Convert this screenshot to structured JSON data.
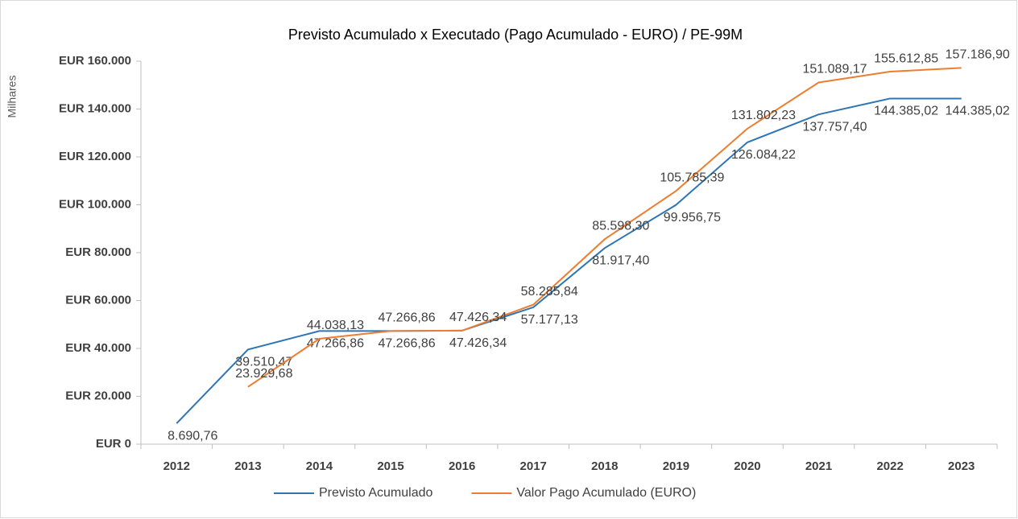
{
  "chart_data": {
    "type": "line",
    "title": "Previsto Acumulado x Executado (Pago Acumulado - EURO) / PE-99M",
    "y_label": "Milhares",
    "categories": [
      "2012",
      "2013",
      "2014",
      "2015",
      "2016",
      "2017",
      "2018",
      "2019",
      "2020",
      "2021",
      "2022",
      "2023"
    ],
    "series": [
      {
        "name": "Previsto Acumulado",
        "color": "#2e75b6",
        "values": [
          8690.76,
          39510.47,
          47266.86,
          47266.86,
          47426.34,
          57177.13,
          81917.4,
          99956.75,
          126084.22,
          137757.4,
          144385.02,
          144385.02
        ],
        "value_labels": [
          "8.690,76",
          "39.510,47",
          "47.266,86",
          "47.266,86",
          "47.426,34",
          "57.177,13",
          "81.917,40",
          "99.956,75",
          "126.084,22",
          "137.757,40",
          "144.385,02",
          "144.385,02"
        ]
      },
      {
        "name": "Valor Pago Acumulado (EURO)",
        "color": "#ed7d31",
        "values": [
          null,
          23929.68,
          44038.13,
          47266.86,
          47426.34,
          58285.84,
          85598.3,
          105785.39,
          131802.23,
          151089.17,
          155612.85,
          157186.9
        ],
        "value_labels": [
          null,
          "23.929,68",
          "44.038,13",
          "47.266,86",
          "47.426,34",
          "58.285,84",
          "85.598,30",
          "105.785,39",
          "131.802,23",
          "151.089,17",
          "155.612,85",
          "157.186,90"
        ]
      }
    ],
    "ylim": [
      0,
      160000
    ],
    "yticks": [
      {
        "value": 0,
        "label": "EUR 0"
      },
      {
        "value": 20000,
        "label": "EUR 20.000"
      },
      {
        "value": 40000,
        "label": "EUR 40.000"
      },
      {
        "value": 60000,
        "label": "EUR 60.000"
      },
      {
        "value": 80000,
        "label": "EUR 80.000"
      },
      {
        "value": 100000,
        "label": "EUR 100.000"
      },
      {
        "value": 120000,
        "label": "EUR 120.000"
      },
      {
        "value": 140000,
        "label": "EUR 140.000"
      },
      {
        "value": 160000,
        "label": "EUR 160.000"
      }
    ],
    "grid": false,
    "legend": "bottom"
  }
}
